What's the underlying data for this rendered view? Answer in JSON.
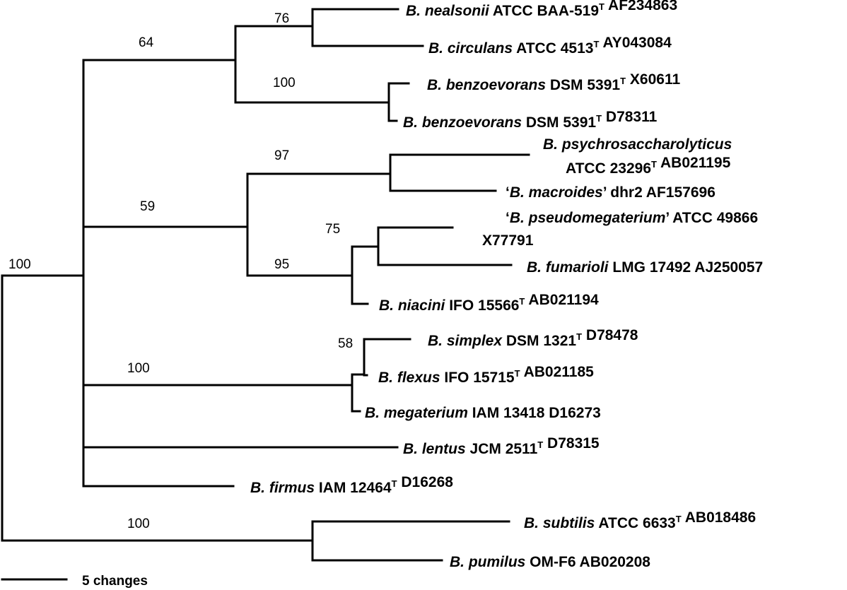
{
  "scale_bar": {
    "label": "5 changes"
  },
  "bootstrap_values": [
    "76",
    "64",
    "100",
    "97",
    "59",
    "75",
    "95",
    "100",
    "58",
    "100",
    "100"
  ],
  "taxa": [
    {
      "id": "nealsonii",
      "parts": [
        {
          "t": "B. nealsonii",
          "it": true
        },
        {
          "t": " ATCC BAA-519"
        },
        {
          "t": "T",
          "sup": true
        },
        {
          "t": " AF234863"
        }
      ]
    },
    {
      "id": "circulans",
      "parts": [
        {
          "t": "B. circulans",
          "it": true
        },
        {
          "t": " ATCC 4513"
        },
        {
          "t": "T",
          "sup": true
        },
        {
          "t": " AY043084"
        }
      ]
    },
    {
      "id": "benzoevorans-1",
      "parts": [
        {
          "t": "B. benzoevorans",
          "it": true
        },
        {
          "t": " DSM 5391"
        },
        {
          "t": "T",
          "sup": true
        },
        {
          "t": " X60611"
        }
      ]
    },
    {
      "id": "benzoevorans-2",
      "parts": [
        {
          "t": "B. benzoevorans",
          "it": true
        },
        {
          "t": " DSM 5391"
        },
        {
          "t": "T",
          "sup": true
        },
        {
          "t": " D78311"
        }
      ]
    },
    {
      "id": "psychrosaccharolyticus",
      "lines": [
        [
          {
            "t": "B. psychrosaccharolyticus",
            "it": true
          }
        ],
        [
          {
            "t": "ATCC 23296"
          },
          {
            "t": "T",
            "sup": true
          },
          {
            "t": " AB021195"
          }
        ]
      ]
    },
    {
      "id": "macroides",
      "parts": [
        {
          "t": "‘"
        },
        {
          "t": "B. macroides",
          "it": true
        },
        {
          "t": "’ dhr2 AF157696"
        }
      ]
    },
    {
      "id": "pseudomegaterium",
      "lines": [
        [
          {
            "t": "‘"
          },
          {
            "t": "B. pseudomegaterium",
            "it": true
          },
          {
            "t": "’ ATCC 49866"
          }
        ],
        [
          {
            "t": "X77791"
          }
        ]
      ]
    },
    {
      "id": "fumarioli",
      "parts": [
        {
          "t": "B. fumarioli",
          "it": true
        },
        {
          "t": " LMG 17492 AJ250057"
        }
      ]
    },
    {
      "id": "niacini",
      "parts": [
        {
          "t": "B. niacini",
          "it": true
        },
        {
          "t": " IFO 15566"
        },
        {
          "t": "T",
          "sup": true
        },
        {
          "t": " AB021194"
        }
      ]
    },
    {
      "id": "simplex",
      "parts": [
        {
          "t": "B. simplex",
          "it": true
        },
        {
          "t": " DSM 1321"
        },
        {
          "t": "T",
          "sup": true
        },
        {
          "t": " D78478"
        }
      ]
    },
    {
      "id": "flexus",
      "parts": [
        {
          "t": "B. flexus",
          "it": true
        },
        {
          "t": " IFO 15715"
        },
        {
          "t": "T",
          "sup": true
        },
        {
          "t": " AB021185"
        }
      ]
    },
    {
      "id": "megaterium",
      "parts": [
        {
          "t": "B. megaterium",
          "it": true
        },
        {
          "t": " IAM 13418 D16273"
        }
      ]
    },
    {
      "id": "lentus",
      "parts": [
        {
          "t": "B. lentus",
          "it": true
        },
        {
          "t": "  JCM 2511"
        },
        {
          "t": "T",
          "sup": true
        },
        {
          "t": " D78315"
        }
      ]
    },
    {
      "id": "firmus",
      "parts": [
        {
          "t": "B. firmus",
          "it": true
        },
        {
          "t": " IAM 12464"
        },
        {
          "t": "T",
          "sup": true
        },
        {
          "t": " D16268"
        }
      ]
    },
    {
      "id": "subtilis",
      "parts": [
        {
          "t": "B. subtilis",
          "it": true
        },
        {
          "t": " ATCC 6633"
        },
        {
          "t": "T",
          "sup": true
        },
        {
          "t": " AB018486"
        }
      ]
    },
    {
      "id": "pumilus",
      "parts": [
        {
          "t": "B. pumilus",
          "it": true
        },
        {
          "t": " OM-F6 AB020208"
        }
      ]
    }
  ]
}
